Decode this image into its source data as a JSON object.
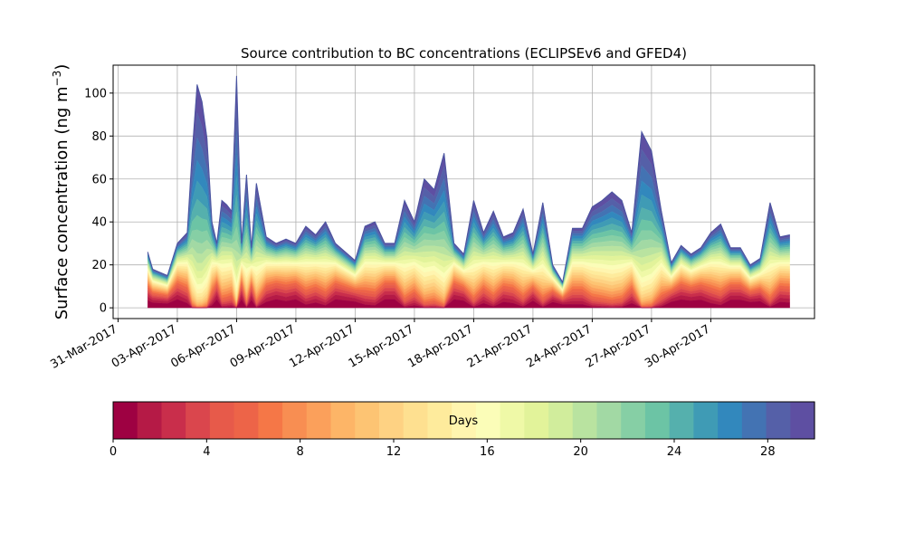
{
  "chart_data": {
    "type": "area",
    "title": "Source contribution to BC concentrations (ECLIPSEv6 and GFED4)",
    "ylabel_main": "Surface concentration (ng m",
    "ylabel_exp": "−3",
    "ylabel_close": ")",
    "xlabel": "",
    "xlim": [
      "2017-03-30T18:00",
      "2017-05-05T06:00"
    ],
    "ylim": [
      -5,
      113
    ],
    "yticks": [
      0,
      20,
      40,
      60,
      80,
      100
    ],
    "ytick_labels": [
      "0",
      "20",
      "40",
      "60",
      "80",
      "100"
    ],
    "xticks": [
      "2017-03-31",
      "2017-04-03",
      "2017-04-06",
      "2017-04-09",
      "2017-04-12",
      "2017-04-15",
      "2017-04-18",
      "2017-04-21",
      "2017-04-24",
      "2017-04-27",
      "2017-04-30"
    ],
    "xtick_labels": [
      "31-Mar-2017",
      "03-Apr-2017",
      "06-Apr-2017",
      "09-Apr-2017",
      "12-Apr-2017",
      "15-Apr-2017",
      "18-Apr-2017",
      "21-Apr-2017",
      "24-Apr-2017",
      "27-Apr-2017",
      "30-Apr-2017"
    ],
    "grid": true,
    "total": {
      "x": [
        "2017-04-01T12:00",
        "2017-04-01T18:00",
        "2017-04-02T00:00",
        "2017-04-02T12:00",
        "2017-04-03T00:00",
        "2017-04-03T12:00",
        "2017-04-03T18:00",
        "2017-04-04T00:00",
        "2017-04-04T06:00",
        "2017-04-04T12:00",
        "2017-04-04T18:00",
        "2017-04-05T00:00",
        "2017-04-05T06:00",
        "2017-04-05T12:00",
        "2017-04-05T18:00",
        "2017-04-06T00:00",
        "2017-04-06T06:00",
        "2017-04-06T12:00",
        "2017-04-06T18:00",
        "2017-04-07T00:00",
        "2017-04-07T12:00",
        "2017-04-08T00:00",
        "2017-04-08T12:00",
        "2017-04-09T00:00",
        "2017-04-09T12:00",
        "2017-04-10T00:00",
        "2017-04-10T12:00",
        "2017-04-11T00:00",
        "2017-04-11T12:00",
        "2017-04-12T00:00",
        "2017-04-12T12:00",
        "2017-04-13T00:00",
        "2017-04-13T12:00",
        "2017-04-14T00:00",
        "2017-04-14T12:00",
        "2017-04-15T00:00",
        "2017-04-15T12:00",
        "2017-04-16T00:00",
        "2017-04-16T12:00",
        "2017-04-17T00:00",
        "2017-04-17T12:00",
        "2017-04-18T00:00",
        "2017-04-18T12:00",
        "2017-04-19T00:00",
        "2017-04-19T12:00",
        "2017-04-20T00:00",
        "2017-04-20T12:00",
        "2017-04-21T00:00",
        "2017-04-21T12:00",
        "2017-04-22T00:00",
        "2017-04-22T12:00",
        "2017-04-23T00:00",
        "2017-04-23T12:00",
        "2017-04-24T00:00",
        "2017-04-24T12:00",
        "2017-04-25T00:00",
        "2017-04-25T12:00",
        "2017-04-26T00:00",
        "2017-04-26T12:00",
        "2017-04-27T00:00",
        "2017-04-27T12:00",
        "2017-04-28T00:00",
        "2017-04-28T12:00",
        "2017-04-29T00:00",
        "2017-04-29T12:00",
        "2017-04-30T00:00",
        "2017-04-30T12:00",
        "2017-05-01T00:00",
        "2017-05-01T12:00",
        "2017-05-02T00:00",
        "2017-05-02T12:00",
        "2017-05-03T00:00",
        "2017-05-03T12:00",
        "2017-05-04T00:00"
      ],
      "y": [
        26,
        18,
        17,
        15,
        30,
        35,
        72,
        104,
        96,
        79,
        40,
        30,
        50,
        48,
        45,
        108,
        30,
        62,
        28,
        58,
        33,
        30,
        32,
        30,
        38,
        34,
        40,
        30,
        26,
        22,
        38,
        40,
        30,
        30,
        50,
        40,
        60,
        55,
        72,
        30,
        25,
        50,
        35,
        45,
        33,
        35,
        46,
        25,
        49,
        20,
        12,
        37,
        37,
        47,
        50,
        54,
        50,
        35,
        82,
        73,
        45,
        21,
        29,
        25,
        28,
        35,
        39,
        28,
        28,
        20,
        23,
        49,
        33,
        34
      ]
    },
    "colorbar": {
      "label": "Days",
      "min": 0,
      "max": 30,
      "ticks": [
        0,
        4,
        8,
        12,
        16,
        20,
        24,
        28
      ],
      "tick_labels": [
        "0",
        "4",
        "8",
        "12",
        "16",
        "20",
        "24",
        "28"
      ],
      "colors": [
        "#9e0142",
        "#b51a46",
        "#c92e4b",
        "#da464d",
        "#e75a4a",
        "#ed6448",
        "#f57747",
        "#f88e52",
        "#fba05b",
        "#fdb567",
        "#fdc473",
        "#fed283",
        "#fee090",
        "#feeb9c",
        "#fff5af",
        "#fbfdb8",
        "#eff9a7",
        "#e2f39a",
        "#d1ed9c",
        "#b9e3a0",
        "#a2d9a4",
        "#86cfa5",
        "#6cc4a5",
        "#55b0ad",
        "#3f9bb5",
        "#3288bd",
        "#4373b3",
        "#5560a8",
        "#5e4fa2"
      ]
    }
  }
}
